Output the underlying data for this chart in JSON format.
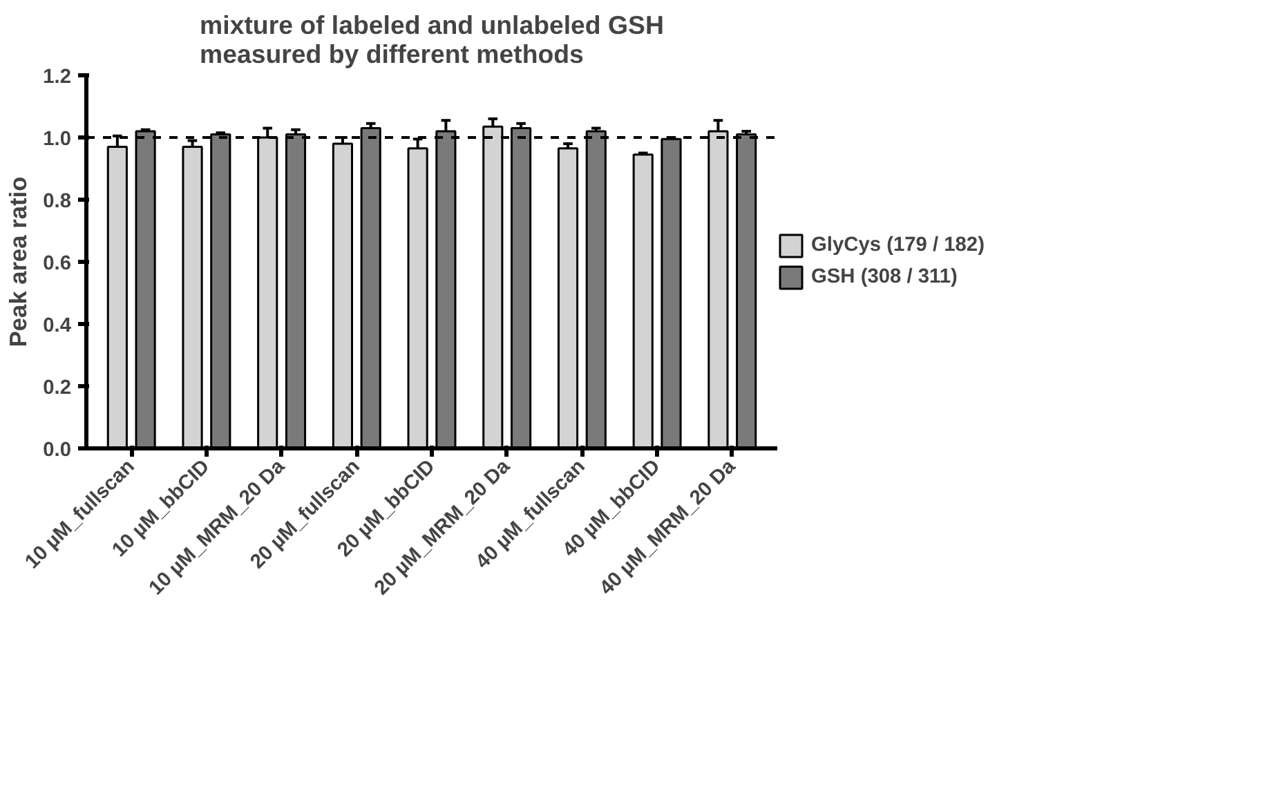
{
  "chart_data": {
    "type": "bar",
    "title": "mixture of labeled and unlabeled GSH\nmeasured by different methods",
    "ylabel": "Peak area ratio",
    "categories": [
      "10 µM_fullscan",
      "10 µM_bbCID",
      "10 µM_MRM_20 Da",
      "20 µM_fullscan",
      "20 µM_bbCID",
      "20 µM_MRM_20 Da",
      "40 µM_fullscan",
      "40 µM_bbCID",
      "40 µM_MRM_20 Da"
    ],
    "series": [
      {
        "name": "GlyCys (179 / 182)",
        "color": "#d3d3d3",
        "values": [
          0.97,
          0.97,
          1.0,
          0.98,
          0.965,
          1.035,
          0.965,
          0.945,
          1.02
        ],
        "errors": [
          [
            0.97,
            1.005
          ],
          [
            0.97,
            0.99
          ],
          [
            1.0,
            1.03
          ],
          [
            0.98,
            1.0
          ],
          [
            0.965,
            0.995
          ],
          [
            1.035,
            1.06
          ],
          [
            0.965,
            0.98
          ],
          [
            0.945,
            0.95
          ],
          [
            1.02,
            1.055
          ]
        ]
      },
      {
        "name": "GSH (308 / 311)",
        "color": "#7a7a7a",
        "values": [
          1.02,
          1.01,
          1.01,
          1.03,
          1.02,
          1.03,
          1.02,
          0.995,
          1.01
        ],
        "errors": [
          [
            1.02,
            1.025
          ],
          [
            1.01,
            1.015
          ],
          [
            1.01,
            1.025
          ],
          [
            1.03,
            1.045
          ],
          [
            1.02,
            1.055
          ],
          [
            1.03,
            1.045
          ],
          [
            1.02,
            1.03
          ],
          [
            0.995,
            1.0
          ],
          [
            1.01,
            1.02
          ]
        ]
      }
    ],
    "ylim": [
      0,
      1.2
    ],
    "yticks": [
      {
        "value": 0,
        "label": "0.0"
      },
      {
        "value": 0.2,
        "label": "0.2"
      },
      {
        "value": 0.4,
        "label": "0.4"
      },
      {
        "value": 0.6,
        "label": "0.6"
      },
      {
        "value": 0.8,
        "label": "0.8"
      },
      {
        "value": 1.0,
        "label": "1.0"
      },
      {
        "value": 1.2,
        "label": "1.2"
      }
    ],
    "ref_lines": [
      {
        "axis": "y",
        "value": 1.0,
        "line_style": "dashed",
        "color": "#000000"
      }
    ],
    "grid": false,
    "legend": "right"
  }
}
